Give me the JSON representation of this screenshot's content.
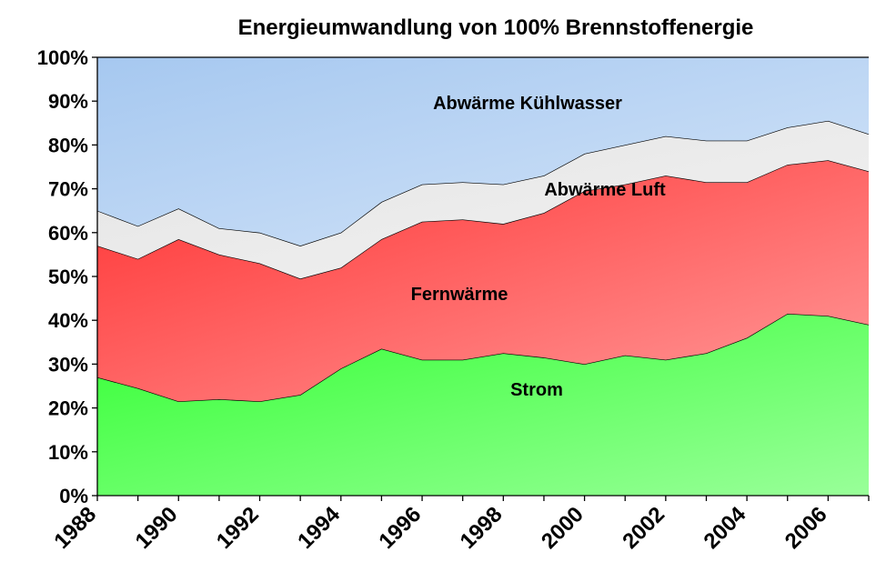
{
  "chart_data": {
    "type": "stacked_area",
    "title": "Energieumwandlung von 100% Brennstoffenergie",
    "x": [
      1988,
      1989,
      1990,
      1991,
      1992,
      1993,
      1994,
      1995,
      1996,
      1997,
      1998,
      1999,
      2000,
      2001,
      2002,
      2003,
      2004,
      2005,
      2006,
      2007
    ],
    "xlim": [
      1988,
      2007
    ],
    "xticks": [
      1988,
      1990,
      1992,
      1994,
      1996,
      1998,
      2000,
      2002,
      2004,
      2006
    ],
    "ylim": [
      0,
      100
    ],
    "yticks": [
      {
        "value": 0,
        "label": "0%"
      },
      {
        "value": 10,
        "label": "10%"
      },
      {
        "value": 20,
        "label": "20%"
      },
      {
        "value": 30,
        "label": "30%"
      },
      {
        "value": 40,
        "label": "40%"
      },
      {
        "value": 50,
        "label": "50%"
      },
      {
        "value": 60,
        "label": "60%"
      },
      {
        "value": 70,
        "label": "70%"
      },
      {
        "value": 80,
        "label": "80%"
      },
      {
        "value": 90,
        "label": "90%"
      },
      {
        "value": 100,
        "label": "100%"
      }
    ],
    "series": [
      {
        "name": "Strom",
        "color": "#33ff33",
        "values": [
          27,
          24.5,
          21.5,
          22,
          21.5,
          23,
          29,
          33.5,
          31,
          31,
          32.5,
          31.5,
          30,
          32,
          31,
          32.5,
          36,
          41.5,
          41,
          39
        ]
      },
      {
        "name": "Fernwärme",
        "color": "#ff3333",
        "values": [
          30,
          29.5,
          37,
          33,
          31.5,
          26.5,
          23,
          25,
          31.5,
          32,
          29.5,
          33,
          39.5,
          39,
          42,
          39,
          35.5,
          34,
          35.5,
          35
        ]
      },
      {
        "name": "Abwärme Luft",
        "color": "#e4e4e4",
        "values": [
          8,
          7.5,
          7,
          6,
          7,
          7.5,
          8,
          8.5,
          8.5,
          8.5,
          9,
          8.5,
          8.5,
          9,
          9,
          9.5,
          9.5,
          8.5,
          9,
          8.5
        ]
      },
      {
        "name": "Abwärme Kühlwasser",
        "color": "#a6c8f0",
        "values": [
          35,
          38.5,
          34.5,
          39,
          40,
          43,
          40,
          33,
          29,
          28.5,
          29,
          27,
          22,
          20,
          18,
          19,
          19,
          16,
          14.5,
          17.5
        ]
      }
    ]
  }
}
